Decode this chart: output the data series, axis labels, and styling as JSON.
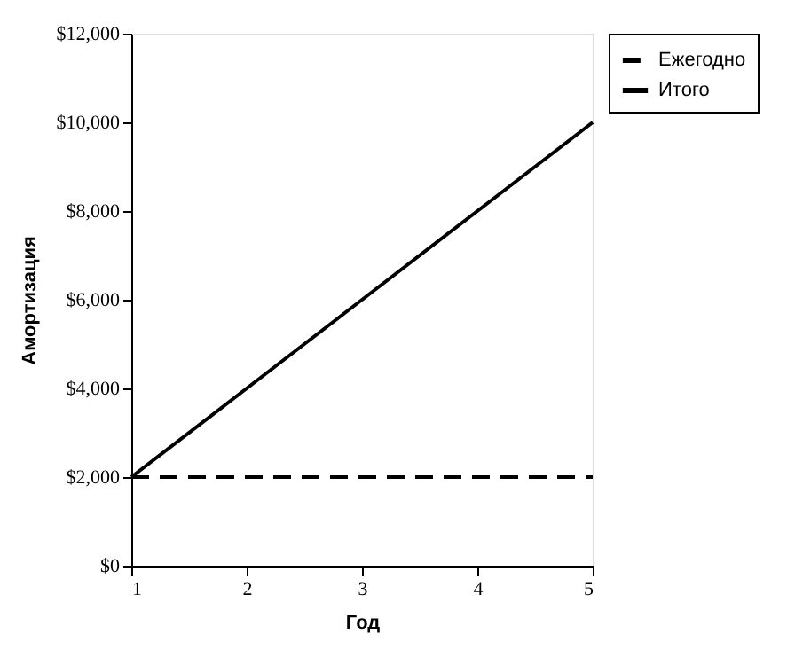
{
  "chart_data": {
    "type": "line",
    "xlabel": "Год",
    "ylabel": "Амортизация",
    "x": [
      1,
      2,
      3,
      4,
      5
    ],
    "series": [
      {
        "name": "Ежегодно",
        "color": "#000000",
        "line_style": "dashed",
        "values": [
          2000,
          2000,
          2000,
          2000,
          2000
        ]
      },
      {
        "name": "Итого",
        "color": "#000000",
        "line_style": "solid",
        "values": [
          2000,
          4000,
          6000,
          8000,
          10000
        ]
      }
    ],
    "xlim": [
      1,
      5
    ],
    "xticks": [
      1,
      2,
      3,
      4,
      5
    ],
    "ylim": [
      0,
      12000
    ],
    "yticks": [
      {
        "value": 0,
        "label": "$0"
      },
      {
        "value": 2000,
        "label": "$2,000"
      },
      {
        "value": 4000,
        "label": "$4,000"
      },
      {
        "value": 6000,
        "label": "$6,000"
      },
      {
        "value": 8000,
        "label": "$8,000"
      },
      {
        "value": 10000,
        "label": "$10,000"
      },
      {
        "value": 12000,
        "label": "$12,000"
      }
    ],
    "grid": false,
    "legend": "right",
    "marker": "none"
  }
}
